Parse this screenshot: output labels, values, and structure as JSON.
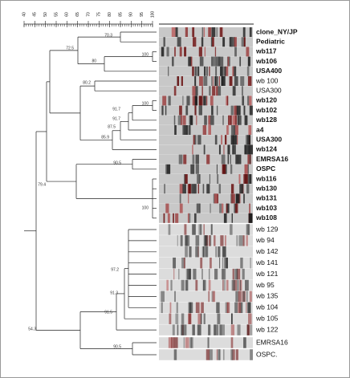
{
  "scale": {
    "ticks": [
      40,
      45,
      50,
      55,
      60,
      65,
      70,
      75,
      80,
      85,
      90,
      95,
      100
    ],
    "range": [
      40,
      100
    ]
  },
  "samples": [
    "clone_NY/JP",
    "Pediatric",
    "wb117",
    "wb106",
    "USA400",
    "wb 100",
    "USA300",
    "wb120",
    "wb102",
    "wb128",
    "a4",
    "USA300",
    "wb124",
    "EMRSA16",
    "OSPC",
    "wb116",
    "wb130",
    "wb131",
    "wb103",
    "wb108",
    "wb 129",
    "wb 94",
    "wb 142",
    "wb 141",
    "wb 121",
    "wb 95",
    "wb 135",
    "wb 104",
    "wb 105",
    "wb 122",
    "EMRSA16",
    "OSPC."
  ],
  "node_labels": [
    70.3,
    72.5,
    100,
    80,
    80.2,
    100,
    91.7,
    91.7,
    87.5,
    85.9,
    90.5,
    79.4,
    100,
    97.2,
    91.3,
    91.5,
    90.5,
    54.3
  ]
}
